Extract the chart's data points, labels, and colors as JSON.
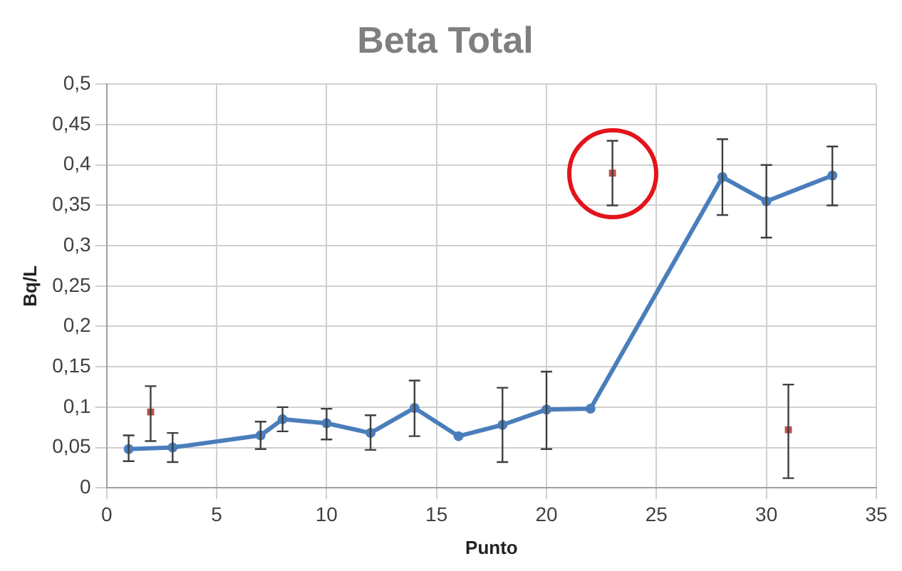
{
  "chart_data": {
    "type": "line",
    "title": "Beta Total",
    "xlabel": "Punto",
    "ylabel": "Bq/L",
    "xlim": [
      0,
      35
    ],
    "xticks": [
      0,
      5,
      10,
      15,
      20,
      25,
      30,
      35
    ],
    "ylim": [
      0,
      0.5
    ],
    "yticks": [
      {
        "value": 0,
        "label": "0"
      },
      {
        "value": 0.05,
        "label": "0,05"
      },
      {
        "value": 0.1,
        "label": "0,1"
      },
      {
        "value": 0.15,
        "label": "0,15"
      },
      {
        "value": 0.2,
        "label": "0,2"
      },
      {
        "value": 0.25,
        "label": "0,25"
      },
      {
        "value": 0.3,
        "label": "0,3"
      },
      {
        "value": 0.35,
        "label": "0,35"
      },
      {
        "value": 0.4,
        "label": "0,4"
      },
      {
        "value": 0.45,
        "label": "0,45"
      },
      {
        "value": 0.5,
        "label": "0,5"
      }
    ],
    "grid": true,
    "legend": false,
    "series": [
      {
        "type": "line",
        "color": "#4a7ebb",
        "marker": "circle",
        "x": [
          1,
          3,
          7,
          8,
          10,
          12,
          14,
          16,
          18,
          20,
          22,
          28,
          30,
          33
        ],
        "values": [
          0.048,
          0.05,
          0.065,
          0.085,
          0.08,
          0.068,
          0.099,
          0.064,
          0.078,
          0.097,
          0.098,
          0.385,
          0.355,
          0.387
        ],
        "errors": [
          [
            0.033,
            0.065
          ],
          [
            0.032,
            0.068
          ],
          [
            0.048,
            0.082
          ],
          [
            0.07,
            0.1
          ],
          [
            0.06,
            0.098
          ],
          [
            0.047,
            0.09
          ],
          [
            0.064,
            0.133
          ],
          null,
          [
            0.032,
            0.124
          ],
          [
            0.048,
            0.144
          ],
          null,
          [
            0.338,
            0.432
          ],
          [
            0.31,
            0.4
          ],
          [
            0.35,
            0.423
          ]
        ]
      },
      {
        "type": "scatter",
        "color": "#c0504d",
        "marker": "square",
        "x": [
          2,
          23,
          31
        ],
        "values": [
          0.094,
          0.39,
          0.072
        ],
        "errors": [
          [
            0.058,
            0.126
          ],
          [
            0.35,
            0.43
          ],
          [
            0.012,
            0.128
          ]
        ]
      }
    ]
  }
}
